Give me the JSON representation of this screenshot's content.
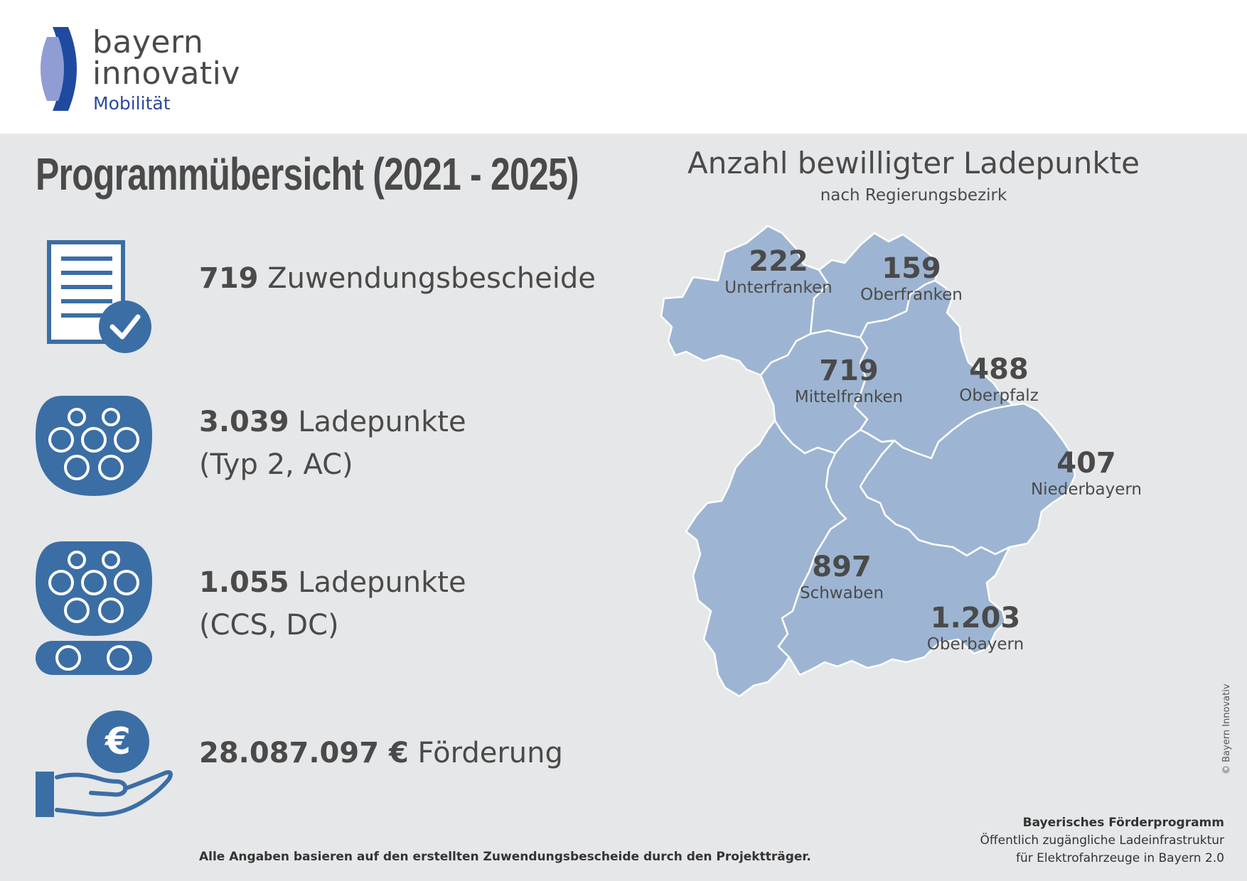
{
  "brand": {
    "line1": "bayern",
    "line2": "innovativ",
    "sub": "Mobilität"
  },
  "title": "Programmübersicht (2021 - 2025)",
  "stats": [
    {
      "icon": "document-check-icon",
      "value": "719",
      "label": "Zuwendungsbescheide",
      "label2": ""
    },
    {
      "icon": "type2-plug-icon",
      "value": "3.039",
      "label": "Ladepunkte",
      "label2": "(Typ 2, AC)"
    },
    {
      "icon": "ccs-plug-icon",
      "value": "1.055",
      "label": "Ladepunkte",
      "label2": "(CCS, DC)"
    },
    {
      "icon": "euro-hand-icon",
      "value": "28.087.097 €",
      "label": "Förderung",
      "label2": ""
    }
  ],
  "map": {
    "title": "Anzahl bewilligter Ladepunkte",
    "subtitle": "nach Regierungsbezirk",
    "regions": [
      {
        "name": "Unterfranken",
        "value": "222"
      },
      {
        "name": "Oberfranken",
        "value": "159"
      },
      {
        "name": "Mittelfranken",
        "value": "719"
      },
      {
        "name": "Oberpfalz",
        "value": "488"
      },
      {
        "name": "Niederbayern",
        "value": "407"
      },
      {
        "name": "Schwaben",
        "value": "897"
      },
      {
        "name": "Oberbayern",
        "value": "1.203"
      }
    ]
  },
  "footnote": "Alle Angaben basieren auf den erstellten Zuwendungsbescheide durch den Projektträger.",
  "program": {
    "line1": "Bayerisches Förderprogramm",
    "line2": "Öffentlich zugängliche Ladeinfrastruktur",
    "line3": "für Elektrofahrzeuge in Bayern 2.0"
  },
  "copyright": "© Bayern Innovativ",
  "colors": {
    "accent": "#3b6ea5",
    "map_fill": "#9db5d2",
    "background": "#e6e7e9",
    "brand_blue": "#2a4a9a"
  }
}
